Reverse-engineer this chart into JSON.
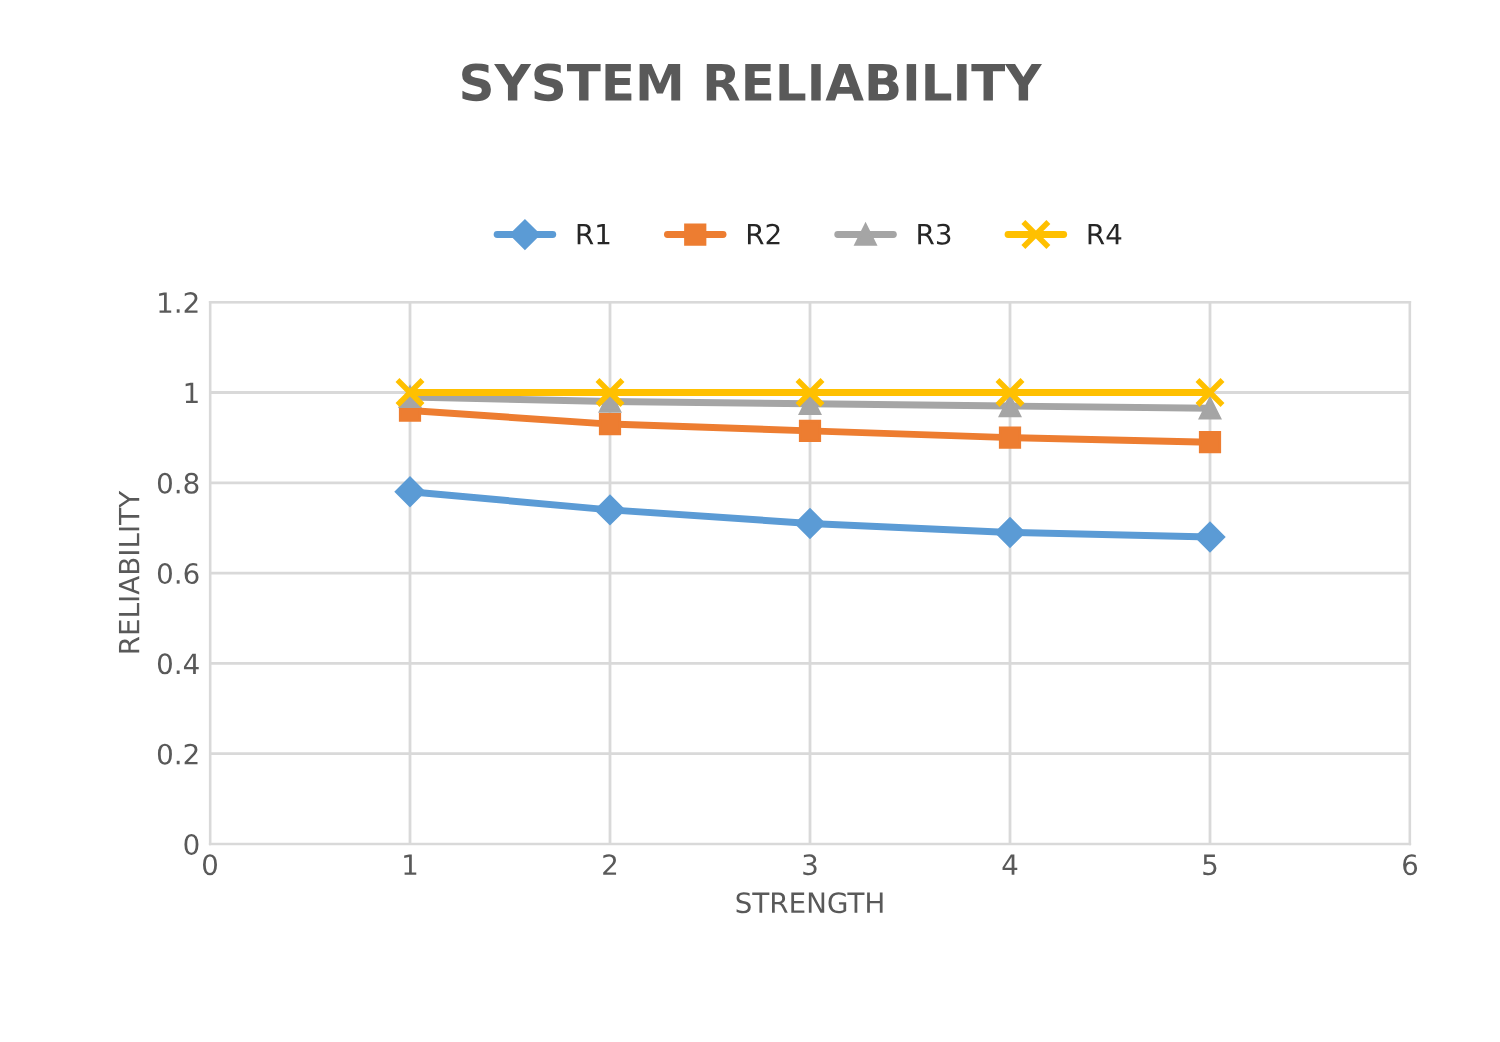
{
  "chart_data": {
    "type": "line",
    "title": "SYSTEM RELIABILITY",
    "xlabel": "STRENGTH",
    "ylabel": "RELIABILITY",
    "x": [
      1,
      2,
      3,
      4,
      5
    ],
    "series": [
      {
        "name": "R1",
        "color": "#5b9bd5",
        "marker": "diamond",
        "values": [
          0.78,
          0.74,
          0.71,
          0.69,
          0.68
        ]
      },
      {
        "name": "R2",
        "color": "#ed7d31",
        "marker": "square",
        "values": [
          0.96,
          0.93,
          0.915,
          0.9,
          0.89
        ]
      },
      {
        "name": "R3",
        "color": "#a5a5a5",
        "marker": "triangle",
        "values": [
          0.99,
          0.98,
          0.975,
          0.97,
          0.965
        ]
      },
      {
        "name": "R4",
        "color": "#ffc000",
        "marker": "cross",
        "values": [
          1.0,
          1.0,
          1.0,
          1.0,
          1.0
        ]
      }
    ],
    "xlim": [
      0,
      6
    ],
    "xticks": [
      0,
      1,
      2,
      3,
      4,
      5,
      6
    ],
    "ylim": [
      0,
      1.2
    ],
    "yticks": [
      0,
      0.2,
      0.4,
      0.6,
      0.8,
      1,
      1.2
    ],
    "grid": true,
    "legend": "top",
    "line_style": "solid"
  }
}
